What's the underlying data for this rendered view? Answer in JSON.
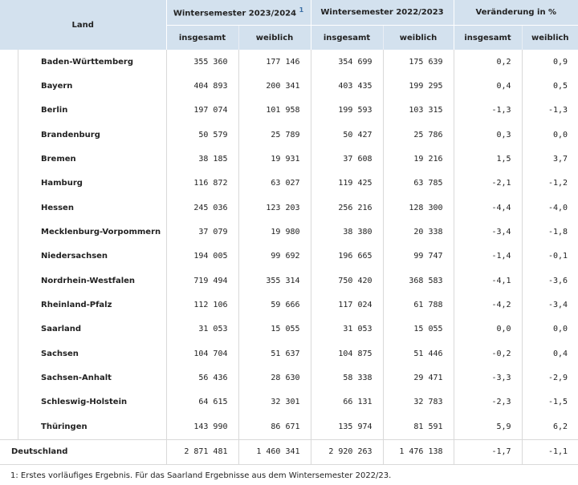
{
  "header": {
    "land": "Land",
    "groups": [
      {
        "label": "Wintersemester 2023/2024",
        "note": "1"
      },
      {
        "label": "Wintersemester 2022/2023",
        "note": ""
      },
      {
        "label": "Veränderung in %",
        "note": ""
      }
    ],
    "sub": [
      "insgesamt",
      "weiblich",
      "insgesamt",
      "weiblich",
      "insgesamt",
      "weiblich"
    ]
  },
  "rows": [
    {
      "name": "Baden-Württemberg",
      "v": [
        "355 360",
        "177 146",
        "354 699",
        "175 639",
        "0,2",
        "0,9"
      ]
    },
    {
      "name": "Bayern",
      "v": [
        "404 893",
        "200 341",
        "403 435",
        "199 295",
        "0,4",
        "0,5"
      ]
    },
    {
      "name": "Berlin",
      "v": [
        "197 074",
        "101 958",
        "199 593",
        "103 315",
        "-1,3",
        "-1,3"
      ]
    },
    {
      "name": "Brandenburg",
      "v": [
        "50 579",
        "25 789",
        "50 427",
        "25 786",
        "0,3",
        "0,0"
      ]
    },
    {
      "name": "Bremen",
      "v": [
        "38 185",
        "19 931",
        "37 608",
        "19 216",
        "1,5",
        "3,7"
      ]
    },
    {
      "name": "Hamburg",
      "v": [
        "116 872",
        "63 027",
        "119 425",
        "63 785",
        "-2,1",
        "-1,2"
      ]
    },
    {
      "name": "Hessen",
      "v": [
        "245 036",
        "123 203",
        "256 216",
        "128 300",
        "-4,4",
        "-4,0"
      ]
    },
    {
      "name": "Mecklenburg-Vorpommern",
      "v": [
        "37 079",
        "19 980",
        "38 380",
        "20 338",
        "-3,4",
        "-1,8"
      ]
    },
    {
      "name": "Niedersachsen",
      "v": [
        "194 005",
        "99 692",
        "196 665",
        "99 747",
        "-1,4",
        "-0,1"
      ]
    },
    {
      "name": "Nordrhein-Westfalen",
      "v": [
        "719 494",
        "355 314",
        "750 420",
        "368 583",
        "-4,1",
        "-3,6"
      ]
    },
    {
      "name": "Rheinland-Pfalz",
      "v": [
        "112 106",
        "59 666",
        "117 024",
        "61 788",
        "-4,2",
        "-3,4"
      ]
    },
    {
      "name": "Saarland",
      "v": [
        "31 053",
        "15 055",
        "31 053",
        "15 055",
        "0,0",
        "0,0"
      ]
    },
    {
      "name": "Sachsen",
      "v": [
        "104 704",
        "51 637",
        "104 875",
        "51 446",
        "-0,2",
        "0,4"
      ]
    },
    {
      "name": "Sachsen-Anhalt",
      "v": [
        "56 436",
        "28 630",
        "58 338",
        "29 471",
        "-3,3",
        "-2,9"
      ]
    },
    {
      "name": "Schleswig-Holstein",
      "v": [
        "64 615",
        "32 301",
        "66 131",
        "32 783",
        "-2,3",
        "-1,5"
      ]
    },
    {
      "name": "Thüringen",
      "v": [
        "143 990",
        "86 671",
        "135 974",
        "81 591",
        "5,9",
        "6,2"
      ]
    }
  ],
  "total": {
    "name": "Deutschland",
    "v": [
      "2 871 481",
      "1 460 341",
      "2 920 263",
      "1 476 138",
      "-1,7",
      "-1,1"
    ]
  },
  "footnote": "1: Erstes vorläufiges Ergebnis. Für das Saarland Ergebnisse aus dem Wintersemester 2022/23."
}
